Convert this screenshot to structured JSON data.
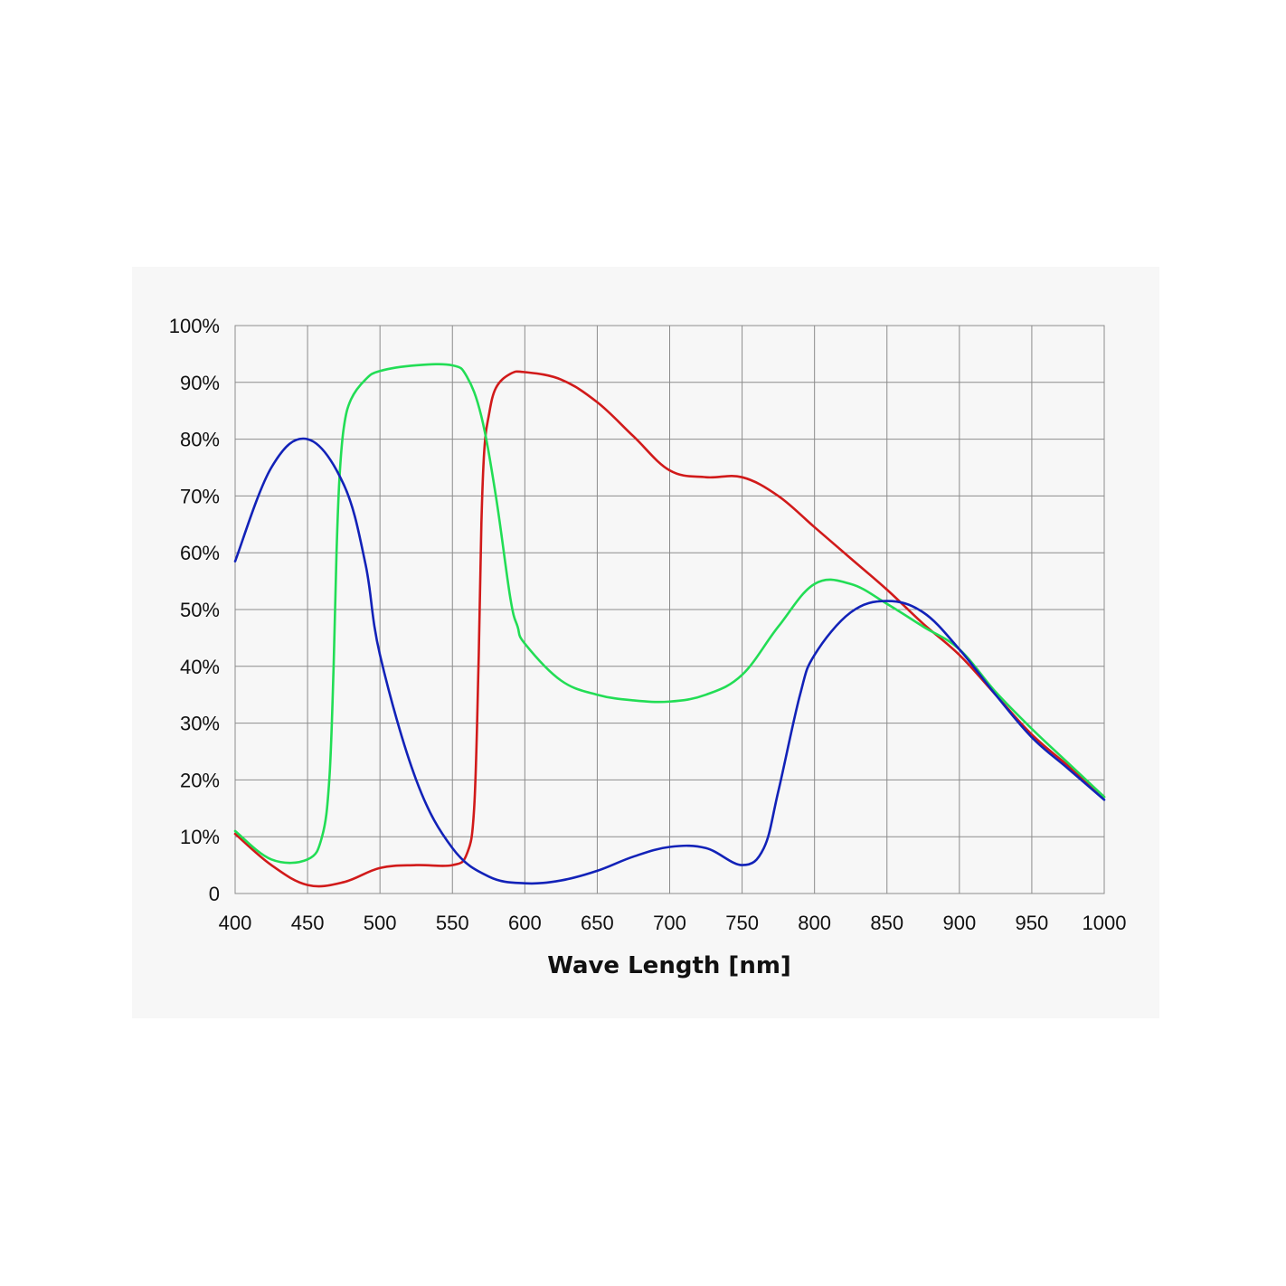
{
  "chart_data": {
    "type": "line",
    "title": "",
    "xlabel": "Wave Length [nm]",
    "ylabel": "",
    "xlim": [
      400,
      1000
    ],
    "ylim": [
      0,
      100
    ],
    "grid": true,
    "legend": "none",
    "x_ticks": [
      400,
      450,
      500,
      550,
      600,
      650,
      700,
      750,
      800,
      850,
      900,
      950,
      1000
    ],
    "x_tick_labels": [
      "400",
      "450",
      "500",
      "550",
      "600",
      "650",
      "700",
      "750",
      "800",
      "850",
      "900",
      "950",
      "1000"
    ],
    "y_ticks": [
      0,
      10,
      20,
      30,
      40,
      50,
      60,
      70,
      80,
      90,
      100
    ],
    "y_tick_labels": [
      "0",
      "10%",
      "20%",
      "30%",
      "40%",
      "50%",
      "60%",
      "70%",
      "80%",
      "90%",
      "100%"
    ],
    "series": [
      {
        "color": "#d11a1a",
        "x": [
          400,
          425,
          450,
          475,
          500,
          525,
          550,
          560,
          565,
          568,
          570,
          572,
          575,
          580,
          590,
          600,
          625,
          650,
          675,
          700,
          725,
          750,
          775,
          800,
          825,
          850,
          875,
          900,
          925,
          950,
          975,
          1000
        ],
        "y": [
          10.5,
          5,
          1.5,
          2,
          4.5,
          5,
          5,
          7,
          15,
          40,
          65,
          78,
          84,
          89,
          91.5,
          91.8,
          90.5,
          86.5,
          80.5,
          74.5,
          73.3,
          73.3,
          70,
          64.5,
          59,
          53.5,
          47.5,
          42,
          35,
          28,
          22.5,
          17
        ]
      },
      {
        "color": "#22dd55",
        "x": [
          400,
          425,
          450,
          460,
          465,
          468,
          470,
          472,
          475,
          480,
          490,
          500,
          525,
          550,
          560,
          570,
          580,
          590,
          595,
          600,
          625,
          650,
          675,
          700,
          725,
          750,
          775,
          800,
          825,
          850,
          875,
          900,
          925,
          950,
          975,
          1000
        ],
        "y": [
          11,
          6,
          6,
          10,
          20,
          40,
          60,
          73,
          82,
          87,
          90.5,
          92,
          93,
          93,
          91,
          84,
          70,
          52,
          47,
          44,
          37.5,
          35,
          34,
          33.8,
          35,
          38.5,
          47,
          54.5,
          54.5,
          51,
          47,
          43,
          35.5,
          29,
          23,
          17
        ]
      },
      {
        "color": "#1222b8",
        "x": [
          400,
          425,
          450,
          475,
          490,
          500,
          525,
          550,
          575,
          600,
          625,
          650,
          675,
          700,
          725,
          750,
          765,
          775,
          790,
          800,
          825,
          850,
          875,
          900,
          925,
          950,
          975,
          1000
        ],
        "y": [
          58.5,
          75,
          80,
          72,
          58,
          42,
          20,
          8,
          3,
          1.8,
          2.3,
          4,
          6.5,
          8.2,
          8,
          5,
          8,
          18,
          35,
          42,
          49.5,
          51.5,
          49.5,
          43,
          35,
          27.5,
          22,
          16.5
        ]
      }
    ]
  }
}
